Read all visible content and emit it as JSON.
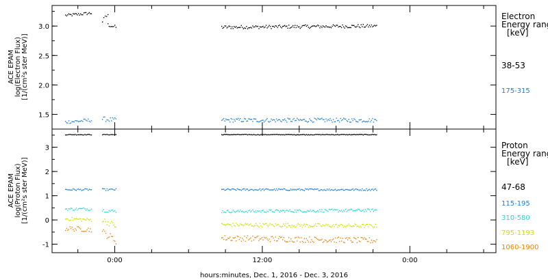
{
  "chart_data": [
    {
      "type": "scatter",
      "panel": "electron",
      "ylabel_lines": [
        "ACE EPAM",
        "log(Electron Flux)",
        "[1/(cm²s ster MeV)]"
      ],
      "yticks": [
        1.5,
        2.0,
        2.5,
        3.0
      ],
      "ytick_labels": [
        "1.5",
        "2.0",
        "2.5",
        "3.0"
      ],
      "ylim": [
        1.25,
        3.35
      ],
      "legend_title_lines": [
        "Electron",
        "Energy range",
        "[keV]"
      ],
      "series": [
        {
          "name": "38-53",
          "color": "#000000",
          "segments": [
            {
              "t0": -4.0,
              "t1": -1.9,
              "y_start": 3.18,
              "y_end": 3.22,
              "noise": 0.025
            },
            {
              "t0": -1.0,
              "t1": -0.55,
              "y_start": 3.08,
              "y_end": 3.2,
              "noise": 0.04
            },
            {
              "t0": -0.55,
              "t1": 0.1,
              "y_start": 3.02,
              "y_end": 2.98,
              "noise": 0.03
            },
            {
              "t0": 8.7,
              "t1": 21.3,
              "y_start": 2.98,
              "y_end": 3.0,
              "noise": 0.03
            }
          ]
        },
        {
          "name": "175-315",
          "color": "#1c7ed6",
          "segments": [
            {
              "t0": -4.0,
              "t1": -1.9,
              "y_start": 1.37,
              "y_end": 1.4,
              "noise": 0.03
            },
            {
              "t0": -1.0,
              "t1": 0.1,
              "y_start": 1.42,
              "y_end": 1.4,
              "noise": 0.04
            },
            {
              "t0": 8.7,
              "t1": 21.3,
              "y_start": 1.4,
              "y_end": 1.4,
              "noise": 0.035
            }
          ]
        }
      ]
    },
    {
      "type": "scatter",
      "panel": "proton",
      "ylabel_lines": [
        "ACE EPAM",
        "log(Proton Flux)",
        "[1/(cm²s ster MeV)]"
      ],
      "yticks": [
        -1,
        0,
        1,
        2,
        3
      ],
      "ytick_labels": [
        "-1",
        "0",
        "1",
        "2",
        "3"
      ],
      "ylim": [
        -1.35,
        3.75
      ],
      "legend_title_lines": [
        "Proton",
        "Energy range",
        "[keV]"
      ],
      "series": [
        {
          "name": "47-68",
          "color": "#000000",
          "segments": [
            {
              "t0": -4.0,
              "t1": -1.9,
              "y_start": 3.52,
              "y_end": 3.52,
              "noise": 0.015
            },
            {
              "t0": -1.0,
              "t1": 0.1,
              "y_start": 3.52,
              "y_end": 3.52,
              "noise": 0.015
            },
            {
              "t0": 8.7,
              "t1": 21.3,
              "y_start": 3.52,
              "y_end": 3.52,
              "noise": 0.015
            }
          ]
        },
        {
          "name": "115-195",
          "color": "#1c7ed6",
          "segments": [
            {
              "t0": -4.0,
              "t1": -1.9,
              "y_start": 1.25,
              "y_end": 1.25,
              "noise": 0.04
            },
            {
              "t0": -1.0,
              "t1": 0.1,
              "y_start": 1.25,
              "y_end": 1.25,
              "noise": 0.04
            },
            {
              "t0": 8.7,
              "t1": 21.3,
              "y_start": 1.25,
              "y_end": 1.25,
              "noise": 0.04
            }
          ]
        },
        {
          "name": "310-580",
          "color": "#20d8d0",
          "segments": [
            {
              "t0": -4.0,
              "t1": -1.9,
              "y_start": 0.45,
              "y_end": 0.45,
              "noise": 0.06
            },
            {
              "t0": -1.0,
              "t1": 0.1,
              "y_start": 0.4,
              "y_end": 0.35,
              "noise": 0.07
            },
            {
              "t0": 8.7,
              "t1": 21.3,
              "y_start": 0.35,
              "y_end": 0.4,
              "noise": 0.06
            }
          ]
        },
        {
          "name": "795-1193",
          "color": "#c8e000",
          "segments": [
            {
              "t0": -4.0,
              "t1": -1.9,
              "y_start": 0.05,
              "y_end": 0.0,
              "noise": 0.07
            },
            {
              "t0": -1.0,
              "t1": 0.1,
              "y_start": 0.0,
              "y_end": -0.25,
              "noise": 0.12
            },
            {
              "t0": 8.7,
              "t1": 21.3,
              "y_start": -0.2,
              "y_end": -0.25,
              "noise": 0.08
            }
          ]
        },
        {
          "name": "1060-1900",
          "color": "#e8820a",
          "segments": [
            {
              "t0": -4.0,
              "t1": -1.9,
              "y_start": -0.35,
              "y_end": -0.4,
              "noise": 0.1
            },
            {
              "t0": -1.0,
              "t1": 0.1,
              "y_start": -0.5,
              "y_end": -0.85,
              "noise": 0.15
            },
            {
              "t0": 8.7,
              "t1": 21.3,
              "y_start": -0.75,
              "y_end": -0.85,
              "noise": 0.12
            }
          ]
        }
      ]
    }
  ],
  "x_axis": {
    "label": "hours:minutes, Dec.  1, 2016 - Dec.  3, 2016",
    "tick_labels": [
      "0:00",
      "12:00",
      "0:00"
    ],
    "tick_hours": [
      0,
      12,
      24
    ],
    "minor_tick_hours": [
      -3,
      3,
      6,
      9,
      15,
      18,
      21,
      27,
      30
    ],
    "xlim_hours": [
      -5.1,
      31.0
    ]
  }
}
